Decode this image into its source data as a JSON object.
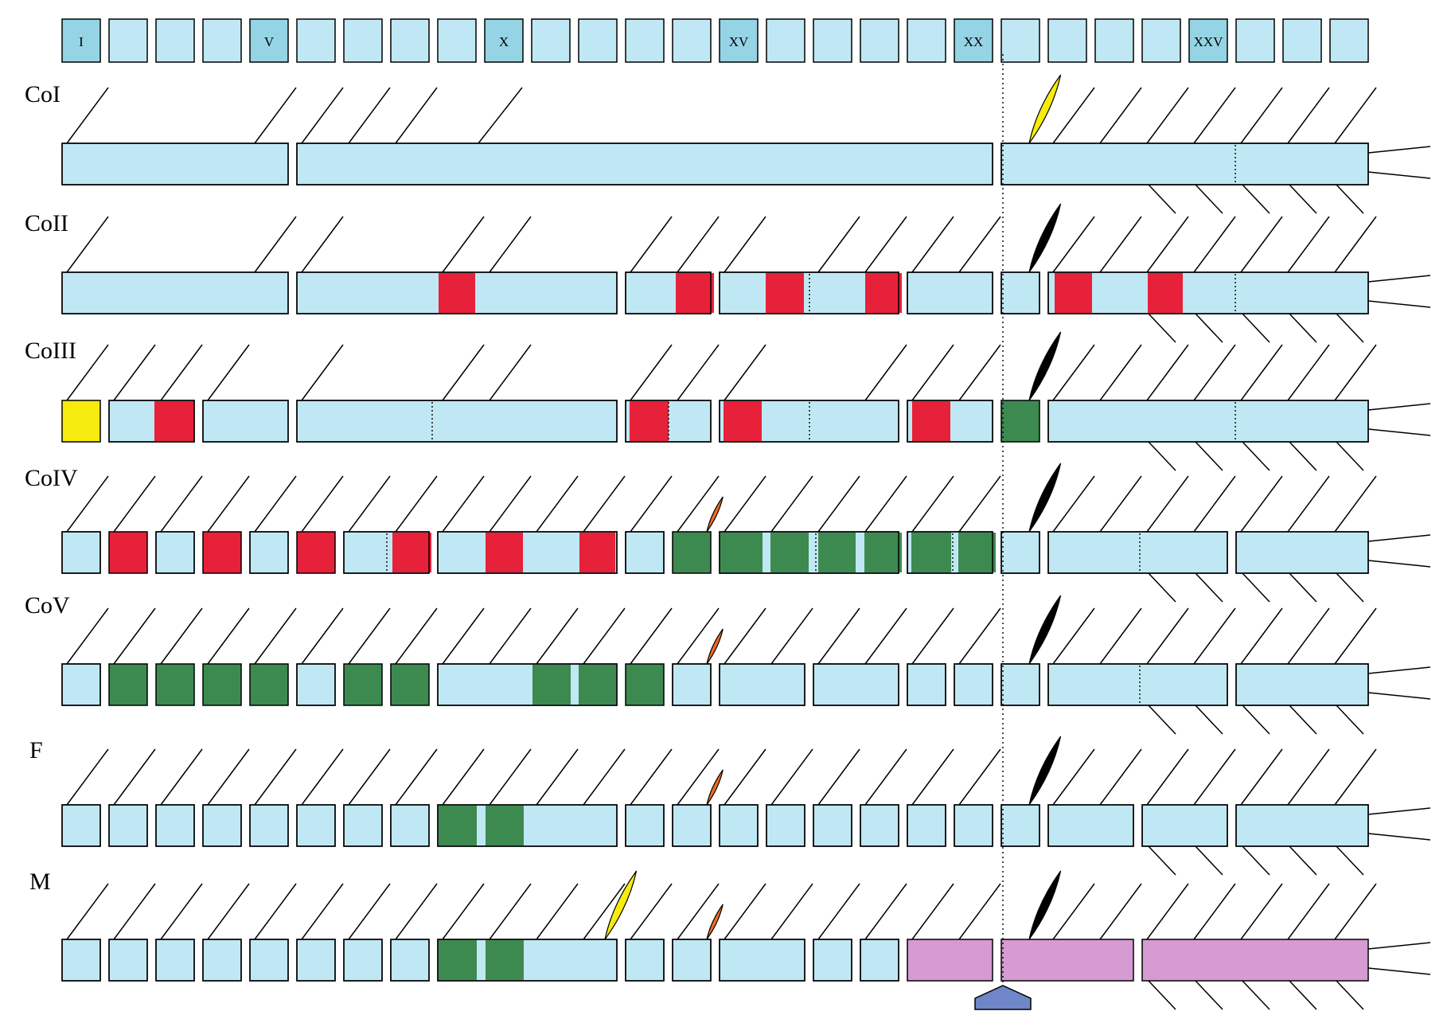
{
  "ruler": {
    "labels": [
      "I",
      "V",
      "X",
      "XV",
      "XX",
      "XXV"
    ],
    "label_positions": [
      1,
      5,
      10,
      15,
      20,
      25
    ],
    "count": 28
  },
  "rows": [
    {
      "label": "CoI"
    },
    {
      "label": "CoII"
    },
    {
      "label": "CoIII"
    },
    {
      "label": "CoIV"
    },
    {
      "label": "CoV"
    },
    {
      "label": "F"
    },
    {
      "label": "M"
    }
  ],
  "colors": {
    "segment": "#c0e8f4",
    "ruler_marked": "#94d4e4",
    "red": "#e8213a",
    "green": "#3c8a50",
    "yellow": "#f5eb0f",
    "pink": "#d59bd2",
    "orange": "#f26a22",
    "black": "#000000",
    "arrow": "#6f86c8"
  }
}
